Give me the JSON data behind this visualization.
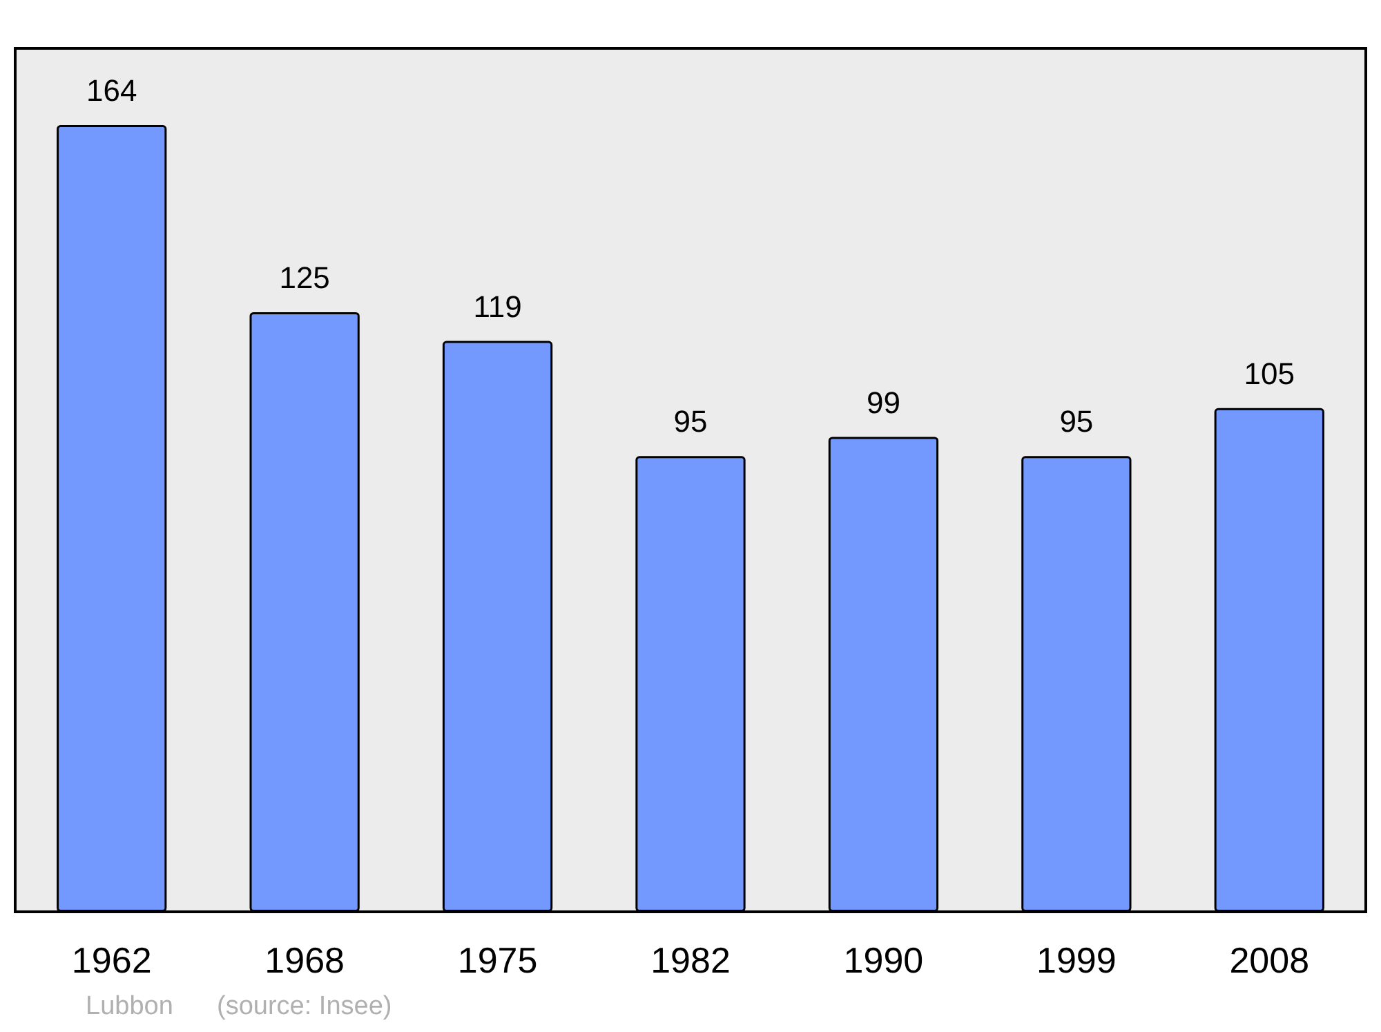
{
  "chart_data": {
    "type": "bar",
    "categories": [
      "1962",
      "1968",
      "1975",
      "1982",
      "1990",
      "1999",
      "2008"
    ],
    "values": [
      164,
      125,
      119,
      95,
      99,
      95,
      105
    ],
    "color": "#7399ff",
    "ylim": [
      0,
      180
    ],
    "data_labels": true,
    "tick_labels": "x",
    "grid": false,
    "annotations": [
      "Lubbon",
      "(source: Insee)"
    ]
  }
}
